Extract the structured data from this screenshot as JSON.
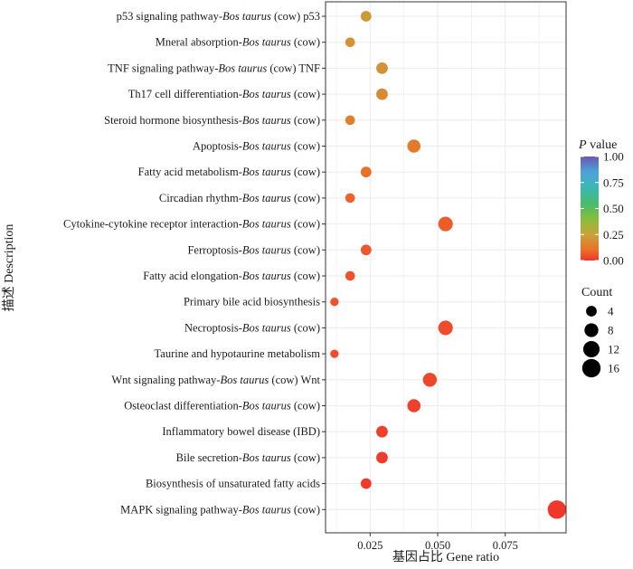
{
  "chart_data": {
    "type": "scatter",
    "title": "",
    "xlabel": "基因占比 Gene ratio",
    "ylabel": "描述 Description",
    "xlim": [
      0.0085,
      0.0975
    ],
    "xticks": [
      {
        "value": 0.025,
        "label": "0.025"
      },
      {
        "value": 0.05,
        "label": "0.050"
      },
      {
        "value": 0.075,
        "label": "0.075"
      }
    ],
    "pathways": [
      {
        "pre": "p53 signaling pathway-",
        "italic": "Bos taurus",
        "post": " (cow) p53",
        "x": 0.0235,
        "count": 4,
        "p": 0.22
      },
      {
        "pre": "Mneral absorption-",
        "italic": "Bos taurus",
        "post": " (cow)",
        "x": 0.0176,
        "count": 3,
        "p": 0.2
      },
      {
        "pre": "TNF signaling pathway-",
        "italic": "Bos taurus",
        "post": " (cow) TNF",
        "x": 0.0294,
        "count": 5,
        "p": 0.2
      },
      {
        "pre": "Th17 cell differentiation-",
        "italic": "Bos taurus",
        "post": " (cow)",
        "x": 0.0294,
        "count": 5,
        "p": 0.18
      },
      {
        "pre": "Steroid hormone biosynthesis-",
        "italic": "Bos taurus",
        "post": " (cow)",
        "x": 0.0176,
        "count": 3,
        "p": 0.15
      },
      {
        "pre": "Apoptosis-",
        "italic": "Bos taurus",
        "post": " (cow)",
        "x": 0.0412,
        "count": 7,
        "p": 0.13
      },
      {
        "pre": "Fatty acid metabolism-",
        "italic": "Bos taurus",
        "post": " (cow)",
        "x": 0.0235,
        "count": 4,
        "p": 0.1
      },
      {
        "pre": "Circadian rhythm-",
        "italic": "Bos taurus",
        "post": " (cow)",
        "x": 0.0176,
        "count": 3,
        "p": 0.08
      },
      {
        "pre": "Cytokine-cytokine receptor interaction-",
        "italic": "Bos taurus",
        "post": " (cow)",
        "x": 0.0529,
        "count": 9,
        "p": 0.07
      },
      {
        "pre": "Ferroptosis-",
        "italic": "Bos taurus",
        "post": " (cow)",
        "x": 0.0235,
        "count": 4,
        "p": 0.06
      },
      {
        "pre": "Fatty acid elongation-",
        "italic": "Bos taurus",
        "post": " (cow)",
        "x": 0.0176,
        "count": 3,
        "p": 0.05
      },
      {
        "pre": "Primary bile acid biosynthesis",
        "italic": "",
        "post": "",
        "x": 0.0118,
        "count": 2,
        "p": 0.05
      },
      {
        "pre": "Necroptosis-",
        "italic": "Bos taurus",
        "post": " (cow)",
        "x": 0.0529,
        "count": 9,
        "p": 0.04
      },
      {
        "pre": "Taurine and hypotaurine metabolism",
        "italic": "",
        "post": "",
        "x": 0.0118,
        "count": 2,
        "p": 0.04
      },
      {
        "pre": "Wnt signaling pathway-",
        "italic": "Bos taurus",
        "post": " (cow) Wnt",
        "x": 0.0471,
        "count": 8,
        "p": 0.03
      },
      {
        "pre": "Osteoclast differentiation-",
        "italic": "Bos taurus",
        "post": " (cow)",
        "x": 0.0412,
        "count": 7,
        "p": 0.02
      },
      {
        "pre": "Inflammatory bowel disease (IBD)",
        "italic": "",
        "post": "",
        "x": 0.0294,
        "count": 5,
        "p": 0.02
      },
      {
        "pre": "Bile secretion-",
        "italic": "Bos taurus",
        "post": " (cow)",
        "x": 0.0294,
        "count": 5,
        "p": 0.01
      },
      {
        "pre": "Biosynthesis of unsaturated fatty acids",
        "italic": "",
        "post": "",
        "x": 0.0235,
        "count": 4,
        "p": 0.01
      },
      {
        "pre": "MAPK signaling pathway-",
        "italic": "Bos taurus",
        "post": " (cow)",
        "x": 0.0941,
        "count": 16,
        "p": 0.005
      }
    ],
    "color_legend": {
      "title_italic": "P",
      "title_rest": " value",
      "ticks": [
        {
          "value": 1.0,
          "label": "1.00"
        },
        {
          "value": 0.75,
          "label": "0.75"
        },
        {
          "value": 0.5,
          "label": "0.50"
        },
        {
          "value": 0.25,
          "label": "0.25"
        },
        {
          "value": 0.0,
          "label": "0.00"
        }
      ],
      "gradient": [
        {
          "value": 0.0,
          "color": "#f0342c"
        },
        {
          "value": 0.1,
          "color": "#ea6f2a"
        },
        {
          "value": 0.25,
          "color": "#c7a33a"
        },
        {
          "value": 0.4,
          "color": "#88bd3d"
        },
        {
          "value": 0.55,
          "color": "#44bc6e"
        },
        {
          "value": 0.7,
          "color": "#3cb7b2"
        },
        {
          "value": 0.85,
          "color": "#4da3d8"
        },
        {
          "value": 1.0,
          "color": "#6a57b0"
        }
      ]
    },
    "size_legend": {
      "title": "Count",
      "items": [
        {
          "value": 4,
          "label": "4"
        },
        {
          "value": 8,
          "label": "8"
        },
        {
          "value": 12,
          "label": "12"
        },
        {
          "value": 16,
          "label": "16"
        }
      ]
    },
    "colors": {
      "gridline": "#ebebeb",
      "frame": "#333333",
      "legend_dot": "#000000"
    }
  }
}
